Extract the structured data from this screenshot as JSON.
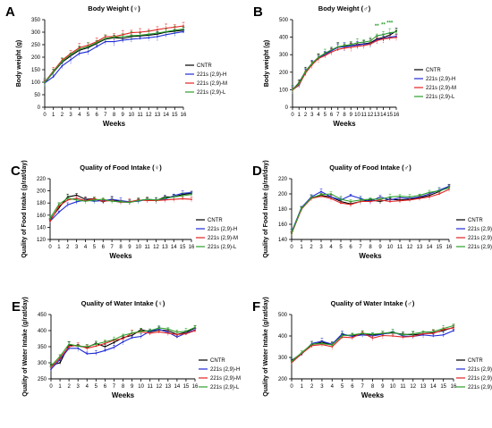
{
  "colors": {
    "CNTR": "#000000",
    "H": "#1f2bd6",
    "M": "#e32222",
    "L": "#2ca02c"
  },
  "chart_data": [
    {
      "panel": "A",
      "type": "line",
      "title": "Body Weight (♀)",
      "xlabel": "Weeks",
      "ylabel": "Body weight (g)",
      "xlim": [
        0,
        16
      ],
      "ylim": [
        0,
        350
      ],
      "yticks": [
        0,
        50,
        100,
        150,
        200,
        250,
        300,
        350
      ],
      "x": [
        0,
        1,
        2,
        3,
        4,
        5,
        6,
        7,
        8,
        9,
        10,
        11,
        12,
        13,
        14,
        15,
        16
      ],
      "legend_position": "right",
      "series": [
        {
          "name": "CNTR",
          "key": "CNTR",
          "values": [
            98,
            140,
            180,
            205,
            228,
            238,
            255,
            272,
            278,
            275,
            282,
            285,
            288,
            292,
            300,
            304,
            308
          ]
        },
        {
          "name": "221s (2,9)-H",
          "key": "H",
          "values": [
            97,
            122,
            165,
            190,
            215,
            222,
            242,
            262,
            262,
            268,
            272,
            275,
            278,
            282,
            290,
            296,
            302
          ]
        },
        {
          "name": "221s (2,9)-M",
          "key": "M",
          "values": [
            100,
            145,
            188,
            215,
            238,
            248,
            262,
            282,
            282,
            290,
            298,
            300,
            304,
            310,
            316,
            320,
            325
          ]
        },
        {
          "name": "221s (2,9)-L",
          "key": "L",
          "values": [
            99,
            142,
            183,
            210,
            232,
            242,
            258,
            275,
            280,
            282,
            286,
            288,
            292,
            296,
            302,
            308,
            312
          ]
        }
      ]
    },
    {
      "panel": "B",
      "type": "line",
      "title": "Body Weight (♂)",
      "xlabel": "Weeks",
      "ylabel": "Body weight (g)",
      "xlim": [
        0,
        16
      ],
      "ylim": [
        0,
        500
      ],
      "yticks": [
        0,
        100,
        200,
        300,
        400,
        500
      ],
      "x": [
        0,
        1,
        2,
        3,
        4,
        5,
        6,
        7,
        8,
        9,
        10,
        11,
        12,
        13,
        14,
        15,
        16
      ],
      "legend_position": "right",
      "significance": [
        {
          "x": 13,
          "label": "**"
        },
        {
          "x": 14,
          "label": "**"
        },
        {
          "x": 15,
          "label": "***"
        }
      ],
      "series": [
        {
          "name": "CNTR",
          "key": "CNTR",
          "values": [
            100,
            140,
            205,
            250,
            285,
            305,
            325,
            345,
            348,
            352,
            358,
            362,
            368,
            390,
            398,
            412,
            435
          ]
        },
        {
          "name": "221s (2,9)-H",
          "key": "H",
          "values": [
            100,
            125,
            200,
            245,
            282,
            300,
            322,
            342,
            345,
            350,
            355,
            360,
            362,
            385,
            392,
            400,
            405
          ]
        },
        {
          "name": "221s (2,9)-M",
          "key": "M",
          "values": [
            98,
            128,
            195,
            242,
            278,
            295,
            315,
            330,
            338,
            342,
            348,
            352,
            360,
            380,
            390,
            395,
            398
          ]
        },
        {
          "name": "221s (2,9)-L",
          "key": "L",
          "values": [
            100,
            135,
            203,
            248,
            285,
            308,
            328,
            345,
            352,
            358,
            368,
            372,
            378,
            408,
            415,
            425,
            430
          ]
        }
      ]
    },
    {
      "panel": "C",
      "type": "line",
      "title": "Quality of Food Intake (♀)",
      "xlabel": "Weeks",
      "ylabel": "Quality of Food Intake (g/rat/day)",
      "xlim": [
        0,
        16
      ],
      "ylim": [
        120,
        220
      ],
      "yticks": [
        120,
        140,
        160,
        180,
        200,
        220
      ],
      "x": [
        0,
        1,
        2,
        3,
        4,
        5,
        6,
        7,
        8,
        9,
        10,
        11,
        12,
        13,
        14,
        15,
        16
      ],
      "legend_position": "right",
      "series": [
        {
          "name": "CNTR",
          "key": "CNTR",
          "values": [
            152,
            172,
            190,
            193,
            186,
            187,
            182,
            186,
            182,
            181,
            184,
            186,
            184,
            190,
            190,
            194,
            196
          ]
        },
        {
          "name": "221s (2,9)-H",
          "key": "H",
          "values": [
            150,
            165,
            177,
            182,
            185,
            183,
            184,
            186,
            184,
            182,
            183,
            186,
            185,
            186,
            192,
            196,
            197
          ]
        },
        {
          "name": "221s (2,9)-M",
          "key": "M",
          "values": [
            150,
            175,
            185,
            188,
            184,
            187,
            183,
            184,
            181,
            182,
            185,
            184,
            184,
            185,
            186,
            187,
            186
          ]
        },
        {
          "name": "221s (2,9)-L",
          "key": "L",
          "values": [
            155,
            178,
            188,
            185,
            183,
            185,
            186,
            183,
            182,
            181,
            184,
            186,
            185,
            188,
            190,
            192,
            194
          ]
        }
      ]
    },
    {
      "panel": "D",
      "type": "line",
      "title": "Quality of Food Intake (♂)",
      "xlabel": "Weeks",
      "ylabel": "Quality of Food Intake (g/rat/day)",
      "xlim": [
        0,
        16
      ],
      "ylim": [
        140,
        220
      ],
      "yticks": [
        140,
        160,
        180,
        200,
        220
      ],
      "x": [
        0,
        1,
        2,
        3,
        4,
        5,
        6,
        7,
        8,
        9,
        10,
        11,
        12,
        13,
        14,
        15,
        16
      ],
      "legend_position": "right",
      "series": [
        {
          "name": "CNTR",
          "key": "CNTR",
          "values": [
            148,
            180,
            195,
            198,
            196,
            190,
            187,
            190,
            192,
            190,
            193,
            192,
            193,
            195,
            198,
            203,
            210
          ]
        },
        {
          "name": "221s (2,9)-H",
          "key": "H",
          "values": [
            150,
            182,
            196,
            203,
            196,
            192,
            198,
            194,
            190,
            196,
            192,
            195,
            194,
            196,
            200,
            205,
            210
          ]
        },
        {
          "name": "221s (2,9)-M",
          "key": "M",
          "values": [
            148,
            180,
            194,
            197,
            194,
            188,
            186,
            190,
            190,
            192,
            190,
            191,
            192,
            194,
            196,
            200,
            206
          ]
        },
        {
          "name": "221s (2,9)-L",
          "key": "L",
          "values": [
            149,
            181,
            195,
            199,
            200,
            193,
            190,
            192,
            193,
            193,
            196,
            197,
            196,
            198,
            202,
            204,
            208
          ]
        }
      ]
    },
    {
      "panel": "E",
      "type": "line",
      "title": "Quality of Water Intake (♀)",
      "xlabel": "Weeks",
      "ylabel": "Quality of Water Intake (g/rat/day)",
      "xlim": [
        0,
        16
      ],
      "ylim": [
        250,
        450
      ],
      "yticks": [
        250,
        300,
        350,
        400,
        450
      ],
      "x": [
        0,
        1,
        2,
        3,
        4,
        5,
        6,
        7,
        8,
        9,
        10,
        11,
        12,
        13,
        14,
        15,
        16
      ],
      "legend_position": "right",
      "series": [
        {
          "name": "CNTR",
          "key": "CNTR",
          "values": [
            292,
            300,
            355,
            352,
            348,
            360,
            350,
            363,
            378,
            385,
            403,
            396,
            402,
            400,
            388,
            395,
            408
          ]
        },
        {
          "name": "221s (2,9)-H",
          "key": "H",
          "values": [
            280,
            310,
            345,
            345,
            328,
            330,
            338,
            348,
            365,
            378,
            382,
            398,
            404,
            395,
            380,
            392,
            402
          ]
        },
        {
          "name": "221s (2,9)-M",
          "key": "M",
          "values": [
            285,
            315,
            350,
            355,
            345,
            352,
            360,
            370,
            375,
            392,
            396,
            392,
            396,
            392,
            388,
            390,
            400
          ]
        },
        {
          "name": "221s (2,9)-L",
          "key": "L",
          "values": [
            290,
            320,
            358,
            352,
            350,
            358,
            365,
            372,
            385,
            392,
            398,
            400,
            408,
            405,
            395,
            398,
            410
          ]
        }
      ]
    },
    {
      "panel": "F",
      "type": "line",
      "title": "Quality of Water Intake (♂)",
      "xlabel": "Weeks",
      "ylabel": "Quality of Water Intake (g/rat/day)",
      "xlim": [
        0,
        16
      ],
      "ylim": [
        200,
        500
      ],
      "yticks": [
        200,
        300,
        400,
        500
      ],
      "x": [
        0,
        1,
        2,
        3,
        4,
        5,
        6,
        7,
        8,
        9,
        10,
        11,
        12,
        13,
        14,
        15,
        16
      ],
      "legend_position": "right",
      "series": [
        {
          "name": "CNTR",
          "key": "CNTR",
          "values": [
            285,
            320,
            360,
            370,
            360,
            405,
            400,
            410,
            405,
            410,
            415,
            408,
            405,
            410,
            415,
            425,
            440
          ]
        },
        {
          "name": "221s (2,9)-H",
          "key": "H",
          "values": [
            280,
            315,
            365,
            375,
            362,
            410,
            398,
            405,
            400,
            408,
            420,
            400,
            398,
            405,
            400,
            405,
            425
          ]
        },
        {
          "name": "221s (2,9)-M",
          "key": "M",
          "values": [
            275,
            318,
            355,
            360,
            350,
            395,
            392,
            415,
            390,
            402,
            400,
            395,
            398,
            410,
            412,
            430,
            438
          ]
        },
        {
          "name": "221s (2,9)-L",
          "key": "L",
          "values": [
            282,
            322,
            362,
            365,
            358,
            402,
            405,
            412,
            408,
            412,
            418,
            405,
            410,
            418,
            420,
            435,
            448
          ]
        }
      ]
    }
  ]
}
